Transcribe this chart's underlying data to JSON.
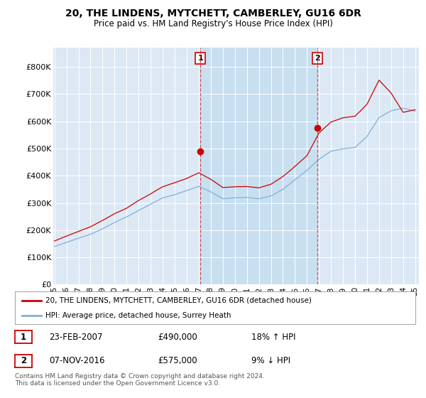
{
  "title": "20, THE LINDENS, MYTCHETT, CAMBERLEY, GU16 6DR",
  "subtitle": "Price paid vs. HM Land Registry's House Price Index (HPI)",
  "ylabel_ticks": [
    "£0",
    "£100K",
    "£200K",
    "£300K",
    "£400K",
    "£500K",
    "£600K",
    "£700K",
    "£800K"
  ],
  "ytick_values": [
    0,
    100000,
    200000,
    300000,
    400000,
    500000,
    600000,
    700000,
    800000
  ],
  "ylim": [
    0,
    870000
  ],
  "xlim_start": 1995.0,
  "xlim_end": 2025.3,
  "background_color": "#dce9f5",
  "shaded_color": "#c8dff0",
  "line1_color": "#cc0000",
  "line2_color": "#80b0d8",
  "marker1_color": "#cc0000",
  "marker2_color": "#cc0000",
  "transaction1_year": 2007.15,
  "transaction1_price": 490000,
  "transaction2_year": 2016.88,
  "transaction2_price": 575000,
  "legend_line1": "20, THE LINDENS, MYTCHETT, CAMBERLEY, GU16 6DR (detached house)",
  "legend_line2": "HPI: Average price, detached house, Surrey Heath",
  "table_rows": [
    {
      "num": "1",
      "date": "23-FEB-2007",
      "price": "£490,000",
      "hpi": "18% ↑ HPI"
    },
    {
      "num": "2",
      "date": "07-NOV-2016",
      "price": "£575,000",
      "hpi": "9% ↓ HPI"
    }
  ],
  "footer": "Contains HM Land Registry data © Crown copyright and database right 2024.\nThis data is licensed under the Open Government Licence v3.0.",
  "xtick_labels": [
    "95",
    "96",
    "97",
    "98",
    "99",
    "00",
    "01",
    "02",
    "03",
    "04",
    "05",
    "06",
    "07",
    "08",
    "09",
    "10",
    "11",
    "12",
    "13",
    "14",
    "15",
    "16",
    "17",
    "18",
    "19",
    "20",
    "21",
    "22",
    "23",
    "24",
    "25"
  ],
  "xtick_years": [
    1995,
    1996,
    1997,
    1998,
    1999,
    2000,
    2001,
    2002,
    2003,
    2004,
    2005,
    2006,
    2007,
    2008,
    2009,
    2010,
    2011,
    2012,
    2013,
    2014,
    2015,
    2016,
    2017,
    2018,
    2019,
    2020,
    2021,
    2022,
    2023,
    2024,
    2025
  ]
}
